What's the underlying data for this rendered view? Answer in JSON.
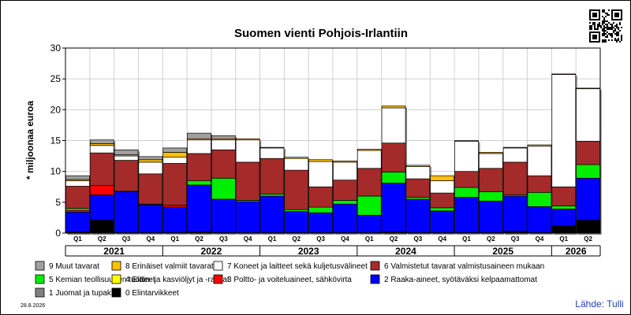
{
  "chart_data": {
    "type": "bar",
    "stacked": true,
    "title": "Suomen vienti Pohjois-Irlantiin",
    "ylabel": "* miljoonaa euroa",
    "ylim": [
      0,
      30
    ],
    "yticks": [
      0,
      5,
      10,
      15,
      20,
      25,
      30
    ],
    "grid": true,
    "categories": [
      "Q1",
      "Q2",
      "Q3",
      "Q4",
      "Q1",
      "Q2",
      "Q3",
      "Q4",
      "Q1",
      "Q2",
      "Q3",
      "Q4",
      "Q1",
      "Q2",
      "Q3",
      "Q4",
      "Q1",
      "Q2",
      "Q3",
      "Q4",
      "Q1",
      "Q2"
    ],
    "years": [
      {
        "label": "2021",
        "start": 0,
        "count": 4
      },
      {
        "label": "2022",
        "start": 4,
        "count": 4
      },
      {
        "label": "2023",
        "start": 8,
        "count": 4
      },
      {
        "label": "2024",
        "start": 12,
        "count": 4
      },
      {
        "label": "2025",
        "start": 16,
        "count": 4
      },
      {
        "label": "2026",
        "start": 20,
        "count": 2
      }
    ],
    "series": [
      {
        "name": "0 Elintarvikkeet",
        "color": "#000000",
        "values": [
          0.2,
          2.1,
          0.1,
          0.1,
          0.1,
          0.2,
          0.1,
          0.1,
          0.1,
          0.1,
          0.1,
          0.1,
          0.1,
          0.2,
          0.1,
          0.1,
          0.1,
          0.1,
          0.3,
          0.1,
          1.2,
          2.1
        ]
      },
      {
        "name": "1 Juomat ja tupakka",
        "color": "#808080",
        "values": [
          0,
          0,
          0,
          0,
          0,
          0,
          0,
          0,
          0,
          0,
          0,
          0,
          0,
          0,
          0,
          0,
          0,
          0,
          0,
          0,
          0,
          0
        ]
      },
      {
        "name": "2 Raaka-aineet, syötäväksi kelpaamattomat",
        "color": "#0000ff",
        "values": [
          3.2,
          4.1,
          6.6,
          4.5,
          4.1,
          7.6,
          5.4,
          5.0,
          5.9,
          3.4,
          3.2,
          4.6,
          2.8,
          7.9,
          5.4,
          3.5,
          5.7,
          5.1,
          5.7,
          4.2,
          2.7,
          6.8
        ]
      },
      {
        "name": "3 Poltto- ja voiteluaineet, sähkövirta",
        "color": "#ff0000",
        "values": [
          0.3,
          1.5,
          0,
          0,
          0.3,
          0,
          0,
          0,
          0,
          0,
          0,
          0,
          0,
          0,
          0,
          0,
          0,
          0,
          0,
          0,
          0,
          0
        ]
      },
      {
        "name": "4 Eläin- ja kasviöljyt ja -rasvat",
        "color": "#ffff00",
        "values": [
          0,
          0,
          0,
          0,
          0,
          0,
          0,
          0,
          0,
          0,
          0,
          0,
          0,
          0,
          0,
          0,
          0,
          0,
          0,
          0,
          0,
          0
        ]
      },
      {
        "name": "5 Kemian teollisuuden tuotteet",
        "color": "#00ee00",
        "values": [
          0.3,
          0,
          0.1,
          0.1,
          0,
          0.7,
          3.4,
          0.2,
          0.3,
          0.3,
          0.9,
          0.6,
          3.1,
          1.8,
          0.3,
          0.5,
          1.6,
          1.5,
          0.2,
          2.3,
          0.5,
          2.2
        ]
      },
      {
        "name": "6 Valmistetut tavarat valmistusaineen mukaan",
        "color": "#a52a2a",
        "values": [
          3.6,
          5.3,
          5.0,
          4.9,
          6.8,
          4.4,
          4.6,
          6.2,
          5.8,
          6.4,
          3.3,
          3.3,
          4.5,
          4.7,
          3.0,
          2.4,
          2.6,
          3.8,
          5.3,
          2.7,
          3.1,
          3.8
        ]
      },
      {
        "name": "7 Koneet ja laitteet sekä kuljetusvälineet",
        "color": "#ffffff",
        "values": [
          0.9,
          1.2,
          0.7,
          1.9,
          1.0,
          2.2,
          1.6,
          3.6,
          1.7,
          1.9,
          4.1,
          2.9,
          2.9,
          5.7,
          2.0,
          2.0,
          4.9,
          2.4,
          2.3,
          4.8,
          18.2,
          8.5
        ]
      },
      {
        "name": "8 Erinäiset valmiit tavarat",
        "color": "#ffc000",
        "values": [
          0.2,
          0.3,
          0.2,
          0.4,
          0.8,
          0.2,
          0.2,
          0.2,
          0.1,
          0.2,
          0.3,
          0.2,
          0.2,
          0.3,
          0.2,
          0.8,
          0.1,
          0.2,
          0.1,
          0.2,
          0.1,
          0.1
        ]
      },
      {
        "name": "9 Muut tavarat",
        "color": "#a0a0a0",
        "values": [
          0.6,
          0.6,
          0.8,
          0.5,
          0.7,
          0.9,
          0.5,
          0,
          0,
          0,
          0,
          0,
          0,
          0,
          0,
          0,
          0,
          0,
          0,
          0,
          0,
          0
        ]
      }
    ],
    "legend_rows": [
      [
        "9 Muut tavarat",
        "8 Erinäiset valmiit tavarat",
        "7 Koneet ja laitteet sekä kuljetusvälineet",
        "6 Valmistetut tavarat valmistusaineen mukaan"
      ],
      [
        "5 Kemian teollisuuden tuotteet",
        "4 Eläin- ja kasviöljyt ja -rasvat",
        "3 Poltto- ja voiteluaineet, sähkövirta",
        "2 Raaka-aineet, syötäväksi kelpaamattomat"
      ],
      [
        "1 Juomat ja tupakka",
        "0 Elintarvikkeet"
      ]
    ],
    "legend_placement": "bottom"
  },
  "footer": {
    "date": "28.8.2026",
    "source": "Lähde: Tulli"
  },
  "qr_icon": "qr-code-icon"
}
